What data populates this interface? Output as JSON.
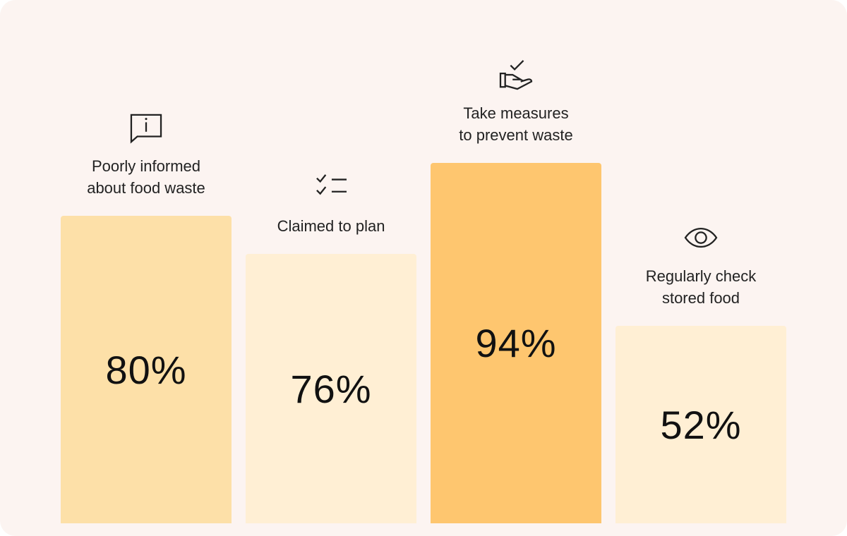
{
  "chart_data": {
    "type": "bar",
    "categories": [
      "Poorly informed\nabout food waste",
      "Claimed to plan",
      "Take measures\nto prevent waste",
      "Regularly check\nstored food"
    ],
    "values": [
      80,
      76,
      94,
      52
    ],
    "value_labels": [
      "80%",
      "76%",
      "94%",
      "52%"
    ],
    "icons": [
      "info-speech-bubble-icon",
      "checklist-icon",
      "hand-check-icon",
      "eye-icon"
    ],
    "colors": [
      "#fde0a8",
      "#ffefd4",
      "#fec66f",
      "#ffefd4"
    ],
    "ylim": [
      0,
      100
    ],
    "title": "",
    "xlabel": "",
    "ylabel": ""
  }
}
